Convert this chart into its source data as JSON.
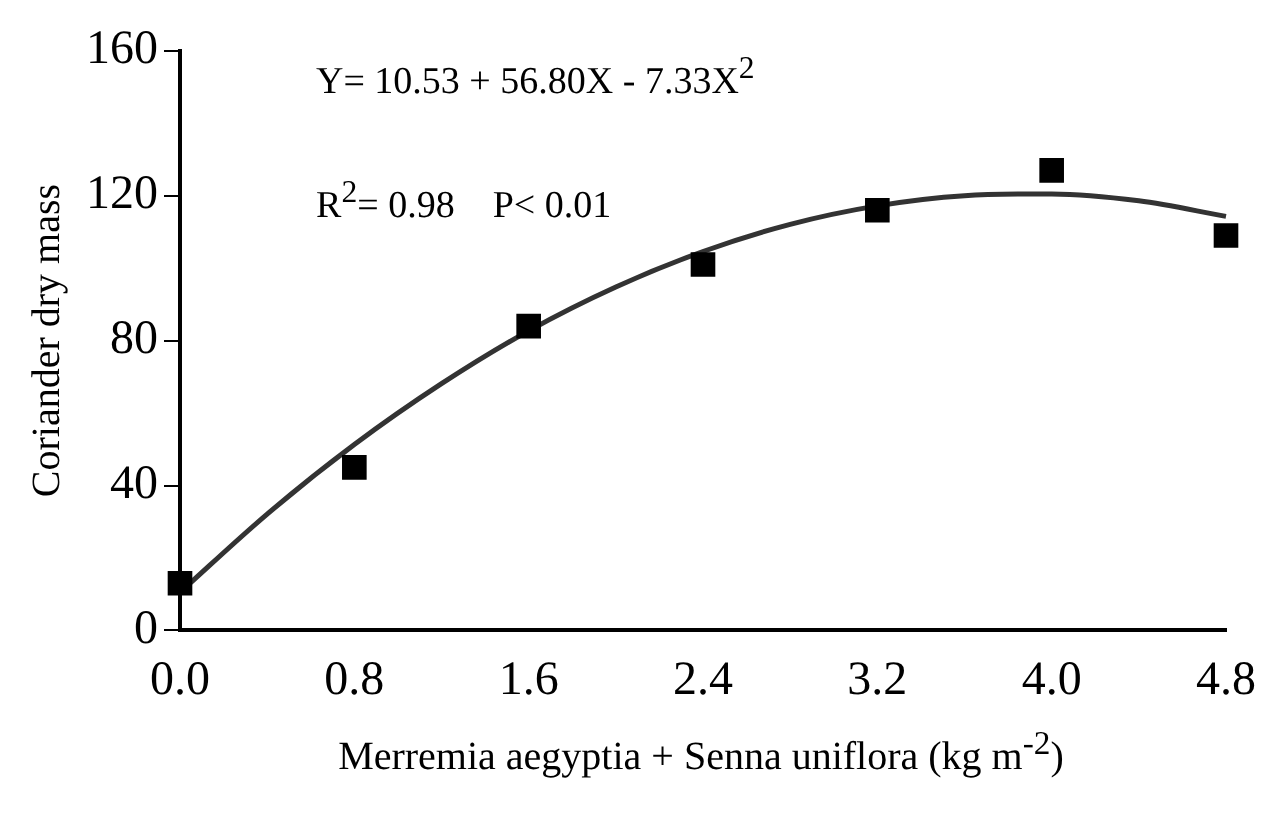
{
  "chart_data": {
    "type": "scatter",
    "xlabel": "Merremia aegyptia + Senna uniflora (kg m$^{-2}$)",
    "ylabel": "Coriander dry mass",
    "annotations": [
      "Y= 10.53 + 56.80X - 7.33X$^{2}$",
      "R$^{2}$= 0.98    P< 0.01"
    ],
    "x": [
      0,
      0.8,
      1.6,
      2.4,
      3.2,
      4.0,
      4.8
    ],
    "series": [
      {
        "color": "#000000",
        "marker": "square",
        "values": [
          13,
          45,
          84,
          101,
          116,
          127,
          109
        ]
      },
      {
        "type": "line",
        "color": "#333333",
        "marker": "none",
        "line_style": "solid",
        "x": [
          0,
          0.4,
          0.8,
          1.2,
          1.6,
          2.0,
          2.4,
          2.8,
          3.2,
          3.6,
          4.0,
          4.4,
          4.8
        ],
        "values": [
          10.5,
          32.1,
          51.3,
          68.1,
          82.7,
          94.8,
          104.6,
          112.1,
          117.2,
          120.0,
          120.5,
          118.6,
          114.3
        ]
      }
    ],
    "xlim": [
      0,
      4.8
    ],
    "xticks": [
      {
        "value": 0,
        "label": "0.0"
      },
      0.8,
      1.6,
      2.4,
      3.2,
      {
        "value": 4,
        "label": "4.0"
      },
      4.8
    ],
    "ylim": [
      0,
      160
    ],
    "yticks": [
      0,
      40,
      80,
      120,
      160
    ],
    "grid": false,
    "legend": false
  }
}
